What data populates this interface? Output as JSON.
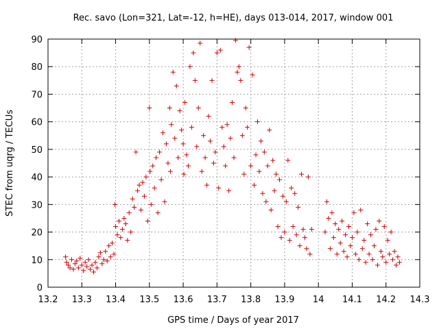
{
  "chart_data": {
    "type": "scatter",
    "title": "Rec. savo (Lon=321, Lat=-12, h=HE), days 013-014, 2017, window 001",
    "xlabel": "GPS time / Days of year 2017",
    "ylabel": "STEC from uqrg / TECUs",
    "xlim": [
      13.2,
      14.3
    ],
    "ylim": [
      0,
      90
    ],
    "x_ticks": [
      13.2,
      13.3,
      13.4,
      13.5,
      13.6,
      13.7,
      13.8,
      13.9,
      14,
      14.1,
      14.2,
      14.3
    ],
    "x_tick_labels": [
      "13.2",
      "13.3",
      "13.4",
      "13.5",
      "13.6",
      "13.7",
      "13.8",
      "13.9",
      "14",
      "14.1",
      "14.2",
      "14.3"
    ],
    "y_ticks": [
      0,
      10,
      20,
      30,
      40,
      50,
      60,
      70,
      80,
      90
    ],
    "y_tick_labels": [
      "0",
      "10",
      "20",
      "30",
      "40",
      "50",
      "60",
      "70",
      "80",
      "90"
    ],
    "grid": true,
    "marker": "plus",
    "color": "#cc0000",
    "points": [
      [
        13.252,
        11
      ],
      [
        13.255,
        9
      ],
      [
        13.26,
        8
      ],
      [
        13.265,
        7
      ],
      [
        13.27,
        10
      ],
      [
        13.275,
        6.5
      ],
      [
        13.28,
        8.5
      ],
      [
        13.285,
        9.5
      ],
      [
        13.29,
        7
      ],
      [
        13.295,
        10.5
      ],
      [
        13.3,
        8
      ],
      [
        13.305,
        6
      ],
      [
        13.31,
        9
      ],
      [
        13.315,
        7.5
      ],
      [
        13.32,
        10
      ],
      [
        13.325,
        6.5
      ],
      [
        13.33,
        8
      ],
      [
        13.335,
        5.5
      ],
      [
        13.34,
        9
      ],
      [
        13.345,
        7
      ],
      [
        13.35,
        11
      ],
      [
        13.355,
        12.5
      ],
      [
        13.36,
        8.5
      ],
      [
        13.365,
        10
      ],
      [
        13.37,
        13
      ],
      [
        13.375,
        9.5
      ],
      [
        13.38,
        15
      ],
      [
        13.385,
        11
      ],
      [
        13.39,
        16
      ],
      [
        13.395,
        12
      ],
      [
        13.398,
        30
      ],
      [
        13.4,
        22
      ],
      [
        13.405,
        19
      ],
      [
        13.41,
        24
      ],
      [
        13.415,
        18
      ],
      [
        13.42,
        21
      ],
      [
        13.425,
        25
      ],
      [
        13.43,
        23
      ],
      [
        13.435,
        17
      ],
      [
        13.44,
        27
      ],
      [
        13.445,
        20
      ],
      [
        13.45,
        32
      ],
      [
        13.455,
        29
      ],
      [
        13.46,
        49
      ],
      [
        13.465,
        35
      ],
      [
        13.47,
        37
      ],
      [
        13.475,
        28
      ],
      [
        13.48,
        38
      ],
      [
        13.485,
        33
      ],
      [
        13.49,
        40
      ],
      [
        13.495,
        24
      ],
      [
        13.5,
        65
      ],
      [
        13.502,
        42
      ],
      [
        13.505,
        30
      ],
      [
        13.51,
        44
      ],
      [
        13.515,
        36
      ],
      [
        13.52,
        47
      ],
      [
        13.525,
        27
      ],
      [
        13.53,
        49
      ],
      [
        13.535,
        39
      ],
      [
        13.54,
        56
      ],
      [
        13.545,
        31
      ],
      [
        13.55,
        52
      ],
      [
        13.555,
        45
      ],
      [
        13.56,
        65
      ],
      [
        13.562,
        42
      ],
      [
        13.565,
        59
      ],
      [
        13.57,
        78
      ],
      [
        13.575,
        54
      ],
      [
        13.58,
        73
      ],
      [
        13.585,
        47
      ],
      [
        13.59,
        64
      ],
      [
        13.595,
        57
      ],
      [
        13.6,
        52
      ],
      [
        13.602,
        41
      ],
      [
        13.605,
        67
      ],
      [
        13.61,
        48
      ],
      [
        13.615,
        44
      ],
      [
        13.62,
        80
      ],
      [
        13.625,
        58
      ],
      [
        13.63,
        85
      ],
      [
        13.635,
        75
      ],
      [
        13.64,
        51
      ],
      [
        13.645,
        65
      ],
      [
        13.65,
        88.5
      ],
      [
        13.655,
        42
      ],
      [
        13.66,
        55
      ],
      [
        13.665,
        47
      ],
      [
        13.67,
        37
      ],
      [
        13.675,
        62
      ],
      [
        13.68,
        53
      ],
      [
        13.685,
        75
      ],
      [
        13.69,
        45
      ],
      [
        13.695,
        49
      ],
      [
        13.7,
        85
      ],
      [
        13.705,
        36
      ],
      [
        13.71,
        86
      ],
      [
        13.715,
        58
      ],
      [
        13.72,
        51
      ],
      [
        13.725,
        44
      ],
      [
        13.73,
        59
      ],
      [
        13.735,
        35
      ],
      [
        13.74,
        54
      ],
      [
        13.745,
        67
      ],
      [
        13.75,
        47
      ],
      [
        13.755,
        89.5
      ],
      [
        13.76,
        78
      ],
      [
        13.765,
        80
      ],
      [
        13.77,
        75
      ],
      [
        13.775,
        55
      ],
      [
        13.78,
        41
      ],
      [
        13.785,
        65
      ],
      [
        13.79,
        58
      ],
      [
        13.795,
        87
      ],
      [
        13.8,
        44
      ],
      [
        13.805,
        77
      ],
      [
        13.81,
        37
      ],
      [
        13.815,
        48
      ],
      [
        13.82,
        60
      ],
      [
        13.825,
        42
      ],
      [
        13.83,
        53
      ],
      [
        13.835,
        34
      ],
      [
        13.84,
        49
      ],
      [
        13.845,
        31
      ],
      [
        13.85,
        44
      ],
      [
        13.855,
        57
      ],
      [
        13.86,
        28
      ],
      [
        13.865,
        46
      ],
      [
        13.87,
        35
      ],
      [
        13.875,
        41
      ],
      [
        13.88,
        22
      ],
      [
        13.885,
        39
      ],
      [
        13.89,
        18
      ],
      [
        13.895,
        33
      ],
      [
        13.9,
        20
      ],
      [
        13.905,
        31
      ],
      [
        13.91,
        46
      ],
      [
        13.915,
        17
      ],
      [
        13.92,
        36
      ],
      [
        13.925,
        22
      ],
      [
        13.93,
        34
      ],
      [
        13.935,
        19
      ],
      [
        13.94,
        29
      ],
      [
        13.945,
        15
      ],
      [
        13.95,
        41
      ],
      [
        13.955,
        21
      ],
      [
        13.96,
        18
      ],
      [
        13.965,
        14
      ],
      [
        13.97,
        40
      ],
      [
        13.975,
        12
      ],
      [
        13.98,
        21
      ],
      [
        14.02,
        20
      ],
      [
        14.025,
        31
      ],
      [
        14.03,
        25
      ],
      [
        14.035,
        14
      ],
      [
        14.04,
        27
      ],
      [
        14.045,
        18
      ],
      [
        14.05,
        23
      ],
      [
        14.055,
        12
      ],
      [
        14.06,
        21
      ],
      [
        14.065,
        16
      ],
      [
        14.07,
        24
      ],
      [
        14.075,
        13
      ],
      [
        14.08,
        19
      ],
      [
        14.085,
        11
      ],
      [
        14.09,
        22
      ],
      [
        14.095,
        15
      ],
      [
        14.1,
        18
      ],
      [
        14.105,
        27
      ],
      [
        14.11,
        12
      ],
      [
        14.115,
        20
      ],
      [
        14.12,
        10
      ],
      [
        14.125,
        28
      ],
      [
        14.13,
        14
      ],
      [
        14.135,
        17
      ],
      [
        14.14,
        9
      ],
      [
        14.145,
        23
      ],
      [
        14.15,
        12
      ],
      [
        14.155,
        19
      ],
      [
        14.16,
        10
      ],
      [
        14.165,
        15
      ],
      [
        14.17,
        21
      ],
      [
        14.175,
        8
      ],
      [
        14.18,
        24
      ],
      [
        14.185,
        13
      ],
      [
        14.19,
        11
      ],
      [
        14.195,
        22
      ],
      [
        14.2,
        9
      ],
      [
        14.205,
        17
      ],
      [
        14.21,
        12
      ],
      [
        14.215,
        20
      ],
      [
        14.22,
        10
      ],
      [
        14.225,
        13
      ],
      [
        14.23,
        8
      ],
      [
        14.235,
        11
      ],
      [
        14.24,
        9
      ]
    ]
  }
}
